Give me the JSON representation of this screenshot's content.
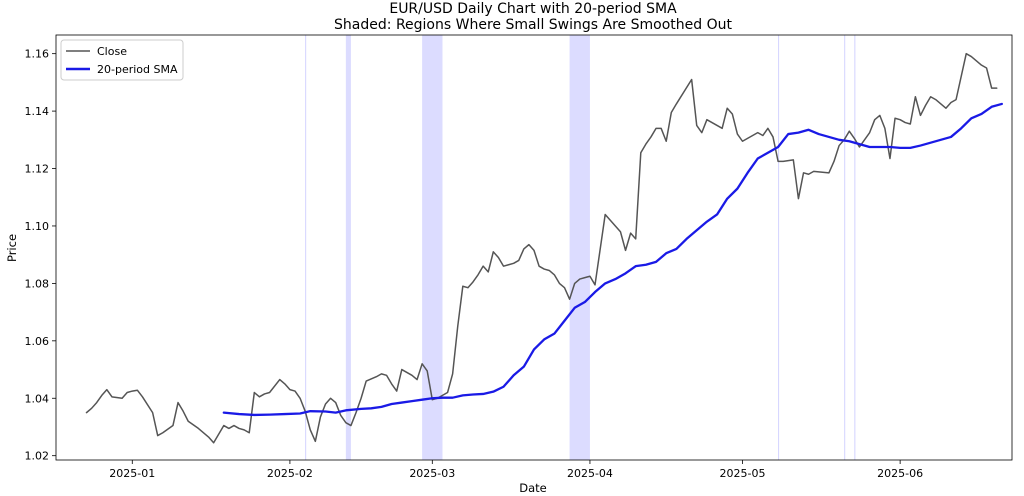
{
  "chart_data": {
    "type": "line",
    "title": "EUR/USD Daily Chart with 20-period SMA",
    "subtitle": "Shaded: Regions Where Small Swings Are Smoothed Out",
    "xlabel": "Date",
    "ylabel": "Price",
    "xlim": [
      "2024-12-17",
      "2025-06-23"
    ],
    "ylim": [
      1.0185,
      1.1665
    ],
    "x_ticks": [
      "2025-01-01",
      "2025-02-01",
      "2025-03-01",
      "2025-04-01",
      "2025-05-01",
      "2025-06-01"
    ],
    "x_tick_labels": [
      "2025-01",
      "2025-02",
      "2025-03",
      "2025-04",
      "2025-05",
      "2025-06"
    ],
    "y_ticks": [
      1.02,
      1.04,
      1.06,
      1.08,
      1.1,
      1.12,
      1.14,
      1.16
    ],
    "y_tick_labels": [
      "1.02",
      "1.04",
      "1.06",
      "1.08",
      "1.10",
      "1.12",
      "1.14",
      "1.16"
    ],
    "grid": false,
    "legend": {
      "position": "top-left",
      "entries": [
        "Close",
        "20-period SMA"
      ]
    },
    "shaded_regions": [
      {
        "start": "2025-02-04",
        "end": "2025-02-04"
      },
      {
        "start": "2025-02-12",
        "end": "2025-02-13"
      },
      {
        "start": "2025-02-27",
        "end": "2025-03-03"
      },
      {
        "start": "2025-03-28",
        "end": "2025-04-01"
      },
      {
        "start": "2025-05-08",
        "end": "2025-05-08"
      },
      {
        "start": "2025-05-21",
        "end": "2025-05-21"
      },
      {
        "start": "2025-05-23",
        "end": "2025-05-23"
      }
    ],
    "series": [
      {
        "name": "Close",
        "color": "#555555",
        "points": [
          [
            "2024-12-23",
            1.035
          ],
          [
            "2024-12-24",
            1.0365
          ],
          [
            "2024-12-25",
            1.0385
          ],
          [
            "2024-12-26",
            1.041
          ],
          [
            "2024-12-27",
            1.043
          ],
          [
            "2024-12-28",
            1.0405
          ],
          [
            "2024-12-30",
            1.04
          ],
          [
            "2024-12-31",
            1.042
          ],
          [
            "2025-01-01",
            1.0425
          ],
          [
            "2025-01-02",
            1.0428
          ],
          [
            "2025-01-03",
            1.0405
          ],
          [
            "2025-01-05",
            1.035
          ],
          [
            "2025-01-06",
            1.027
          ],
          [
            "2025-01-07",
            1.028
          ],
          [
            "2025-01-09",
            1.0305
          ],
          [
            "2025-01-10",
            1.0385
          ],
          [
            "2025-01-11",
            1.0355
          ],
          [
            "2025-01-12",
            1.032
          ],
          [
            "2025-01-14",
            1.0295
          ],
          [
            "2025-01-16",
            1.0265
          ],
          [
            "2025-01-17",
            1.0245
          ],
          [
            "2025-01-19",
            1.0305
          ],
          [
            "2025-01-20",
            1.0295
          ],
          [
            "2025-01-21",
            1.0305
          ],
          [
            "2025-01-22",
            1.0295
          ],
          [
            "2025-01-23",
            1.029
          ],
          [
            "2025-01-24",
            1.028
          ],
          [
            "2025-01-25",
            1.042
          ],
          [
            "2025-01-26",
            1.0405
          ],
          [
            "2025-01-27",
            1.0415
          ],
          [
            "2025-01-28",
            1.042
          ],
          [
            "2025-01-30",
            1.0465
          ],
          [
            "2025-01-31",
            1.045
          ],
          [
            "2025-02-01",
            1.043
          ],
          [
            "2025-02-02",
            1.0425
          ],
          [
            "2025-02-03",
            1.04
          ],
          [
            "2025-02-04",
            1.0355
          ],
          [
            "2025-02-05",
            1.029
          ],
          [
            "2025-02-06",
            1.025
          ],
          [
            "2025-02-07",
            1.0335
          ],
          [
            "2025-02-08",
            1.038
          ],
          [
            "2025-02-09",
            1.04
          ],
          [
            "2025-02-10",
            1.0385
          ],
          [
            "2025-02-11",
            1.034
          ],
          [
            "2025-02-12",
            1.0315
          ],
          [
            "2025-02-13",
            1.0305
          ],
          [
            "2025-02-14",
            1.035
          ],
          [
            "2025-02-15",
            1.04
          ],
          [
            "2025-02-16",
            1.046
          ],
          [
            "2025-02-18",
            1.0475
          ],
          [
            "2025-02-19",
            1.0485
          ],
          [
            "2025-02-20",
            1.048
          ],
          [
            "2025-02-21",
            1.045
          ],
          [
            "2025-02-22",
            1.0425
          ],
          [
            "2025-02-23",
            1.05
          ],
          [
            "2025-02-24",
            1.049
          ],
          [
            "2025-02-25",
            1.048
          ],
          [
            "2025-02-26",
            1.0465
          ],
          [
            "2025-02-27",
            1.052
          ],
          [
            "2025-02-28",
            1.0495
          ],
          [
            "2025-03-01",
            1.0395
          ],
          [
            "2025-03-02",
            1.04
          ],
          [
            "2025-03-03",
            1.041
          ],
          [
            "2025-03-04",
            1.042
          ],
          [
            "2025-03-05",
            1.0485
          ],
          [
            "2025-03-06",
            1.065
          ],
          [
            "2025-03-07",
            1.079
          ],
          [
            "2025-03-08",
            1.0785
          ],
          [
            "2025-03-09",
            1.0805
          ],
          [
            "2025-03-10",
            1.083
          ],
          [
            "2025-03-11",
            1.086
          ],
          [
            "2025-03-12",
            1.084
          ],
          [
            "2025-03-13",
            1.091
          ],
          [
            "2025-03-14",
            1.089
          ],
          [
            "2025-03-15",
            1.086
          ],
          [
            "2025-03-16",
            1.0865
          ],
          [
            "2025-03-17",
            1.087
          ],
          [
            "2025-03-18",
            1.088
          ],
          [
            "2025-03-19",
            1.092
          ],
          [
            "2025-03-20",
            1.0935
          ],
          [
            "2025-03-21",
            1.0915
          ],
          [
            "2025-03-22",
            1.086
          ],
          [
            "2025-03-23",
            1.085
          ],
          [
            "2025-03-24",
            1.0845
          ],
          [
            "2025-03-25",
            1.083
          ],
          [
            "2025-03-26",
            1.08
          ],
          [
            "2025-03-27",
            1.0785
          ],
          [
            "2025-03-28",
            1.0745
          ],
          [
            "2025-03-29",
            1.08
          ],
          [
            "2025-03-30",
            1.0815
          ],
          [
            "2025-03-31",
            1.082
          ],
          [
            "2025-04-01",
            1.0825
          ],
          [
            "2025-04-02",
            1.0795
          ],
          [
            "2025-04-04",
            1.104
          ],
          [
            "2025-04-05",
            1.102
          ],
          [
            "2025-04-06",
            1.1
          ],
          [
            "2025-04-07",
            1.098
          ],
          [
            "2025-04-08",
            1.0915
          ],
          [
            "2025-04-09",
            1.0975
          ],
          [
            "2025-04-10",
            1.0955
          ],
          [
            "2025-04-11",
            1.1255
          ],
          [
            "2025-04-12",
            1.1285
          ],
          [
            "2025-04-13",
            1.131
          ],
          [
            "2025-04-14",
            1.134
          ],
          [
            "2025-04-15",
            1.134
          ],
          [
            "2025-04-16",
            1.1295
          ],
          [
            "2025-04-17",
            1.1395
          ],
          [
            "2025-04-18",
            1.1425
          ],
          [
            "2025-04-21",
            1.151
          ],
          [
            "2025-04-22",
            1.135
          ],
          [
            "2025-04-23",
            1.1325
          ],
          [
            "2025-04-24",
            1.137
          ],
          [
            "2025-04-25",
            1.136
          ],
          [
            "2025-04-27",
            1.134
          ],
          [
            "2025-04-28",
            1.141
          ],
          [
            "2025-04-29",
            1.139
          ],
          [
            "2025-04-30",
            1.132
          ],
          [
            "2025-05-01",
            1.1295
          ],
          [
            "2025-05-02",
            1.1305
          ],
          [
            "2025-05-04",
            1.1325
          ],
          [
            "2025-05-05",
            1.1315
          ],
          [
            "2025-05-06",
            1.134
          ],
          [
            "2025-05-07",
            1.131
          ],
          [
            "2025-05-08",
            1.1225
          ],
          [
            "2025-05-09",
            1.1225
          ],
          [
            "2025-05-11",
            1.123
          ],
          [
            "2025-05-12",
            1.1095
          ],
          [
            "2025-05-13",
            1.1185
          ],
          [
            "2025-05-14",
            1.118
          ],
          [
            "2025-05-15",
            1.119
          ],
          [
            "2025-05-18",
            1.1185
          ],
          [
            "2025-05-19",
            1.1225
          ],
          [
            "2025-05-20",
            1.128
          ],
          [
            "2025-05-21",
            1.13
          ],
          [
            "2025-05-22",
            1.133
          ],
          [
            "2025-05-23",
            1.1305
          ],
          [
            "2025-05-24",
            1.1275
          ],
          [
            "2025-05-26",
            1.1325
          ],
          [
            "2025-05-27",
            1.137
          ],
          [
            "2025-05-28",
            1.1385
          ],
          [
            "2025-05-29",
            1.134
          ],
          [
            "2025-05-30",
            1.1235
          ],
          [
            "2025-05-31",
            1.1375
          ],
          [
            "2025-06-01",
            1.137
          ],
          [
            "2025-06-02",
            1.136
          ],
          [
            "2025-06-03",
            1.1355
          ],
          [
            "2025-06-04",
            1.145
          ],
          [
            "2025-06-05",
            1.1385
          ],
          [
            "2025-06-06",
            1.142
          ],
          [
            "2025-06-07",
            1.145
          ],
          [
            "2025-06-08",
            1.144
          ],
          [
            "2025-06-10",
            1.141
          ],
          [
            "2025-06-11",
            1.143
          ],
          [
            "2025-06-12",
            1.144
          ],
          [
            "2025-06-14",
            1.16
          ],
          [
            "2025-06-15",
            1.159
          ],
          [
            "2025-06-17",
            1.156
          ],
          [
            "2025-06-18",
            1.155
          ],
          [
            "2025-06-19",
            1.148
          ],
          [
            "2025-06-20",
            1.148
          ]
        ]
      },
      {
        "name": "20-period SMA",
        "color": "#1a1ae6",
        "points": [
          [
            "2025-01-19",
            1.035
          ],
          [
            "2025-01-22",
            1.0345
          ],
          [
            "2025-01-25",
            1.0342
          ],
          [
            "2025-01-28",
            1.0343
          ],
          [
            "2025-01-31",
            1.0345
          ],
          [
            "2025-02-03",
            1.0347
          ],
          [
            "2025-02-05",
            1.0355
          ],
          [
            "2025-02-08",
            1.0354
          ],
          [
            "2025-02-10",
            1.035
          ],
          [
            "2025-02-12",
            1.0358
          ],
          [
            "2025-02-15",
            1.0363
          ],
          [
            "2025-02-17",
            1.0365
          ],
          [
            "2025-02-19",
            1.037
          ],
          [
            "2025-02-21",
            1.038
          ],
          [
            "2025-02-23",
            1.0385
          ],
          [
            "2025-02-25",
            1.039
          ],
          [
            "2025-02-27",
            1.0395
          ],
          [
            "2025-03-01",
            1.04
          ],
          [
            "2025-03-03",
            1.0402
          ],
          [
            "2025-03-05",
            1.0402
          ],
          [
            "2025-03-07",
            1.041
          ],
          [
            "2025-03-09",
            1.0413
          ],
          [
            "2025-03-11",
            1.0415
          ],
          [
            "2025-03-13",
            1.0423
          ],
          [
            "2025-03-15",
            1.044
          ],
          [
            "2025-03-17",
            1.048
          ],
          [
            "2025-03-19",
            1.051
          ],
          [
            "2025-03-21",
            1.057
          ],
          [
            "2025-03-23",
            1.0605
          ],
          [
            "2025-03-25",
            1.0625
          ],
          [
            "2025-03-27",
            1.067
          ],
          [
            "2025-03-29",
            1.0715
          ],
          [
            "2025-03-31",
            1.0735
          ],
          [
            "2025-04-02",
            1.077
          ],
          [
            "2025-04-04",
            1.08
          ],
          [
            "2025-04-06",
            1.0815
          ],
          [
            "2025-04-08",
            1.0835
          ],
          [
            "2025-04-10",
            1.086
          ],
          [
            "2025-04-12",
            1.0865
          ],
          [
            "2025-04-14",
            1.0875
          ],
          [
            "2025-04-16",
            1.0905
          ],
          [
            "2025-04-18",
            1.092
          ],
          [
            "2025-04-20",
            1.0955
          ],
          [
            "2025-04-22",
            1.0985
          ],
          [
            "2025-04-24",
            1.1015
          ],
          [
            "2025-04-26",
            1.104
          ],
          [
            "2025-04-28",
            1.1095
          ],
          [
            "2025-04-30",
            1.113
          ],
          [
            "2025-05-02",
            1.1185
          ],
          [
            "2025-05-04",
            1.1235
          ],
          [
            "2025-05-06",
            1.1255
          ],
          [
            "2025-05-08",
            1.1275
          ],
          [
            "2025-05-10",
            1.132
          ],
          [
            "2025-05-12",
            1.1325
          ],
          [
            "2025-05-14",
            1.1335
          ],
          [
            "2025-05-16",
            1.132
          ],
          [
            "2025-05-18",
            1.131
          ],
          [
            "2025-05-20",
            1.13
          ],
          [
            "2025-05-22",
            1.1295
          ],
          [
            "2025-05-24",
            1.1285
          ],
          [
            "2025-05-26",
            1.1275
          ],
          [
            "2025-05-28",
            1.1275
          ],
          [
            "2025-05-30",
            1.1275
          ],
          [
            "2025-06-01",
            1.1272
          ],
          [
            "2025-06-03",
            1.1272
          ],
          [
            "2025-06-05",
            1.128
          ],
          [
            "2025-06-07",
            1.129
          ],
          [
            "2025-06-09",
            1.13
          ],
          [
            "2025-06-11",
            1.131
          ],
          [
            "2025-06-13",
            1.134
          ],
          [
            "2025-06-15",
            1.1375
          ],
          [
            "2025-06-17",
            1.139
          ],
          [
            "2025-06-19",
            1.1415
          ],
          [
            "2025-06-21",
            1.1425
          ]
        ]
      }
    ]
  }
}
